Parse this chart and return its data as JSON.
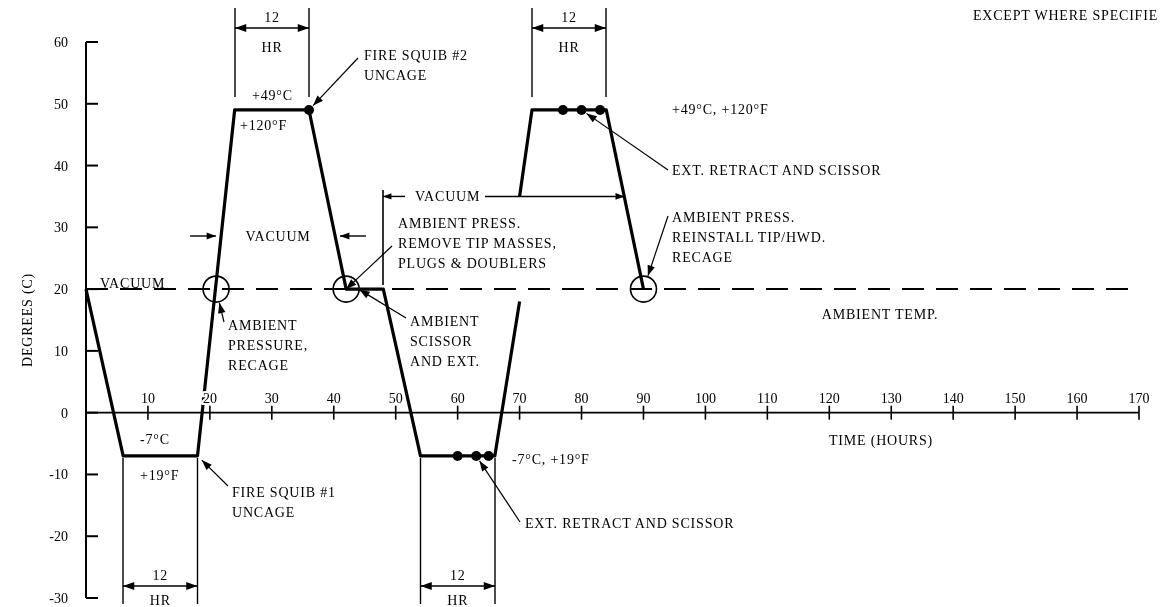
{
  "chart_data": {
    "type": "line",
    "xlabel": "TIME (HOURS)",
    "ylabel": "DEGREES (C)",
    "xlim": [
      0,
      170
    ],
    "ylim": [
      -30,
      60
    ],
    "xticks": [
      10,
      20,
      30,
      40,
      50,
      60,
      70,
      80,
      90,
      100,
      110,
      120,
      130,
      140,
      150,
      160,
      170
    ],
    "yticks": [
      -30,
      -20,
      -10,
      0,
      10,
      20,
      30,
      40,
      50,
      60
    ],
    "series": [
      {
        "color": "#000000",
        "x": [
          0,
          6,
          18,
          24,
          36,
          42,
          48,
          54,
          66,
          70
        ],
        "values": [
          20,
          -7,
          -7,
          49,
          49,
          20,
          20,
          -7,
          -7,
          18
        ]
      },
      {
        "color": "#000000",
        "x": [
          70,
          72,
          84,
          90
        ],
        "values": [
          35,
          49,
          49,
          20
        ]
      },
      {
        "type": "scatter",
        "color": "#000000",
        "marker": "circle",
        "x": [
          36,
          60,
          63,
          65,
          77,
          80,
          83
        ],
        "values": [
          49,
          -7,
          -7,
          -7,
          49,
          49,
          49
        ]
      }
    ],
    "ref_lines": [
      {
        "axis": "y",
        "value": 20,
        "label": "AMBIENT TEMP.",
        "line_style": "dashed"
      }
    ],
    "annotations": [
      "EXCEPT WHERE SPECIFIE",
      "VACUUM",
      {
        "text": "AMBIENT\nPRESSURE,\nRECAGE",
        "x": 21,
        "y": 20
      },
      {
        "text": "AMBIENT PRESS.\nREMOVE TIP MASSES,\nPLUGS & DOUBLERS",
        "x": 42,
        "y": 20
      },
      {
        "text": "AMBIENT\nSCISSOR\nAND EXT.",
        "x": 44,
        "y": 20
      },
      {
        "text": "FIRE SQUIB #2\nUNCAGE",
        "x": 36,
        "y": 49
      },
      {
        "text": "FIRE SQUIB #1\nUNCAGE",
        "x": 18,
        "y": -7
      },
      {
        "text": "EXT. RETRACT AND SCISSOR",
        "x": 63,
        "y": -7
      },
      {
        "text": "EXT. RETRACT AND SCISSOR",
        "x": 80,
        "y": 49
      },
      {
        "text": "AMBIENT PRESS.\nREINSTALL TIP/HWD.\nRECAGE",
        "x": 90,
        "y": 20
      },
      "-7°C",
      "+19°F",
      "+49°C",
      "+120°F",
      "-7°C, +19°F",
      "+49°C, +120°F",
      "12 HR",
      "12 HR",
      "12 HR",
      "12 HR",
      "VACUUM",
      {
        "text": "VACUUM",
        "x": 87,
        "y": 35
      }
    ]
  }
}
